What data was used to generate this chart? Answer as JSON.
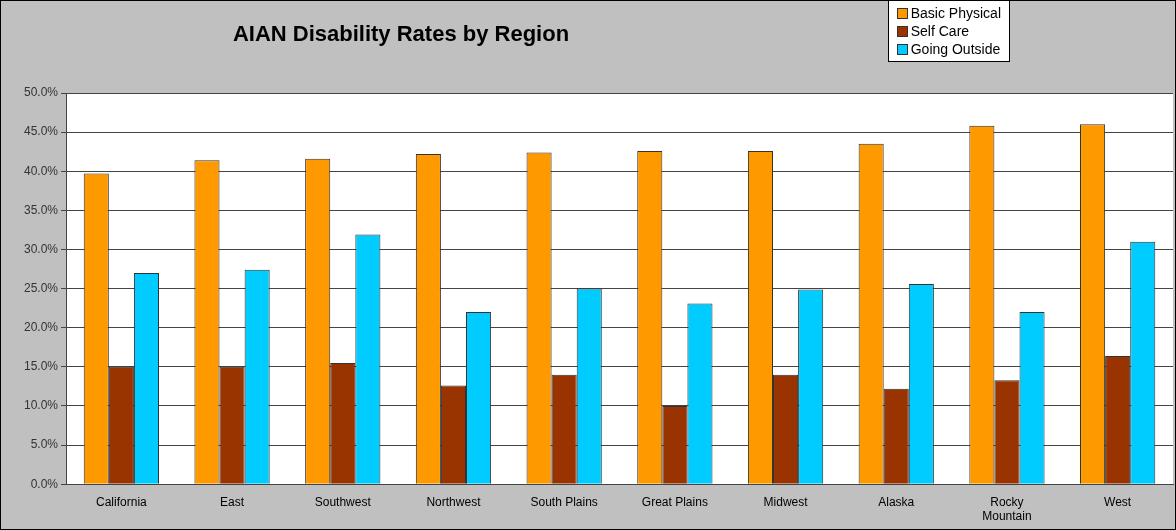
{
  "chart_data": {
    "type": "bar",
    "title": "AIAN Disability Rates by Region",
    "categories": [
      "California",
      "East",
      "Southwest",
      "Northwest",
      "South Plains",
      "Great Plains",
      "Midwest",
      "Alaska",
      "Rocky Mountain",
      "West"
    ],
    "series": [
      {
        "name": "Basic Physical",
        "color": "#ff9900",
        "values": [
          39.7,
          41.4,
          41.6,
          42.2,
          42.4,
          42.6,
          42.6,
          43.5,
          45.8,
          46.0
        ]
      },
      {
        "name": "Self Care",
        "color": "#993300",
        "values": [
          15.0,
          15.0,
          15.5,
          12.6,
          14.0,
          10.0,
          14.0,
          12.2,
          13.3,
          16.4
        ]
      },
      {
        "name": "Going Outside",
        "color": "#00ccff",
        "values": [
          27.0,
          27.4,
          31.9,
          22.0,
          25.0,
          23.1,
          24.9,
          25.6,
          22.0,
          31.0
        ]
      }
    ],
    "ylim": [
      0,
      50
    ],
    "yticks": [
      {
        "value": 0,
        "label": "0.0%"
      },
      {
        "value": 5,
        "label": "5.0%"
      },
      {
        "value": 10,
        "label": "10.0%"
      },
      {
        "value": 15,
        "label": "15.0%"
      },
      {
        "value": 20,
        "label": "20.0%"
      },
      {
        "value": 25,
        "label": "25.0%"
      },
      {
        "value": 30,
        "label": "30.0%"
      },
      {
        "value": 35,
        "label": "35.0%"
      },
      {
        "value": 40,
        "label": "40.0%"
      },
      {
        "value": 45,
        "label": "45.0%"
      },
      {
        "value": 50,
        "label": "50.0%"
      }
    ],
    "grid": "y",
    "legend": "top right"
  }
}
